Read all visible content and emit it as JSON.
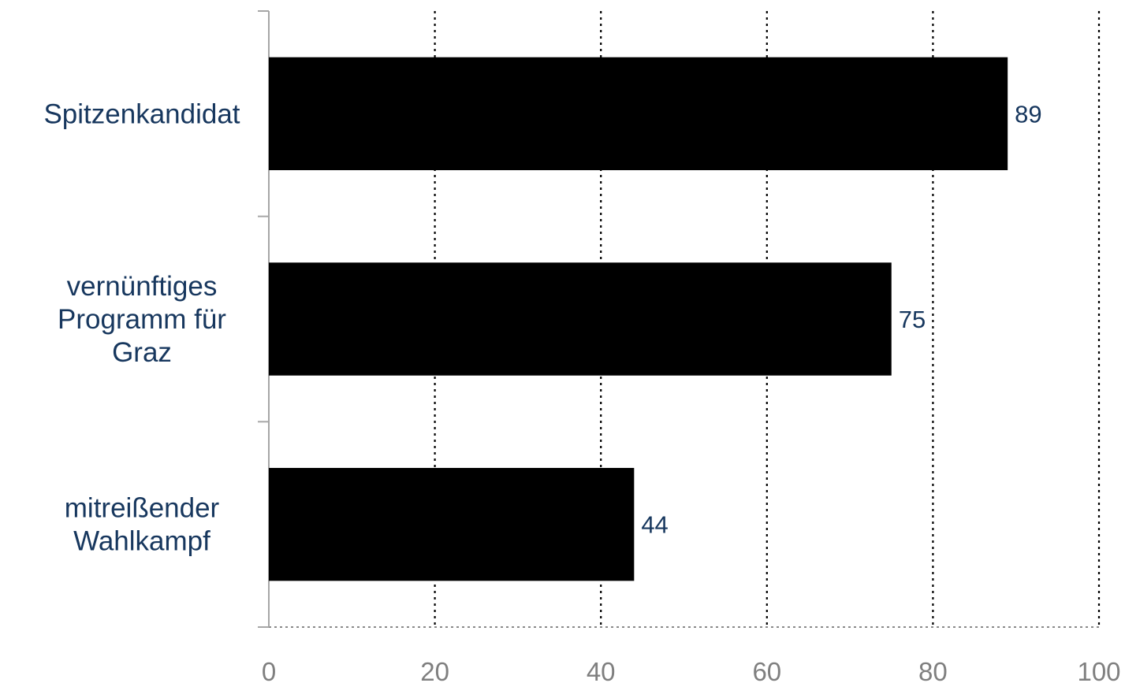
{
  "chart_data": {
    "type": "bar",
    "orientation": "horizontal",
    "categories": [
      [
        "Spitzenkandidat"
      ],
      [
        "vernünftiges",
        "Programm für",
        "Graz"
      ],
      [
        "mitreißender",
        "Wahlkampf"
      ]
    ],
    "values": [
      89,
      75,
      44
    ],
    "x_ticks": [
      "0",
      "20",
      "40",
      "60",
      "80",
      "100"
    ],
    "xlim": [
      0,
      100
    ],
    "title": "",
    "xlabel": "",
    "ylabel": "",
    "grid": "vertical dotted",
    "legend": "none",
    "colors": {
      "bar": "#000000",
      "category_text": "#17375e",
      "value_text": "#17375e",
      "tick_text": "#7f7f7f",
      "axis": "#a6a6a6",
      "grid": "#000000"
    }
  }
}
